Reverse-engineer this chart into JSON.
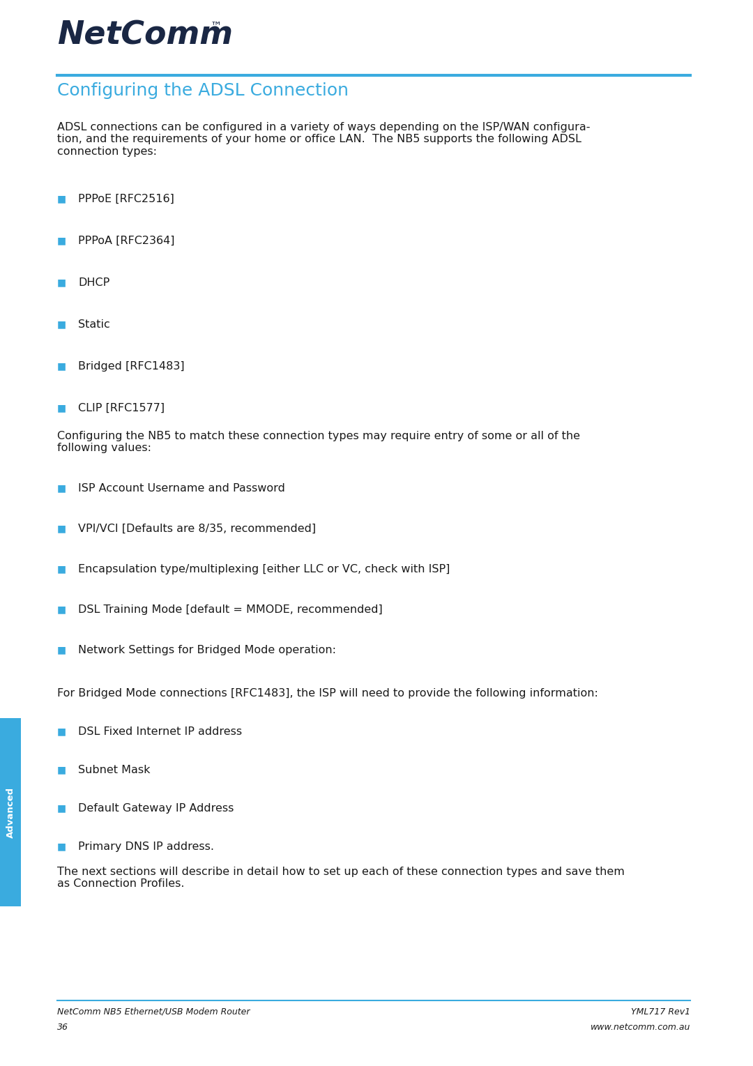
{
  "page_bg": "#ffffff",
  "logo_color": "#1a2744",
  "header_line_color": "#3aabdf",
  "section_title": "Configuring the ADSL Connection",
  "section_title_color": "#3aabdf",
  "body_color": "#1a1a1a",
  "bullet_color": "#3aabdf",
  "footer_line_color": "#3aabdf",
  "footer_left1": "NetComm NB5 Ethernet/USB Modem Router",
  "footer_left2": "36",
  "footer_right1": "YML717 Rev1",
  "footer_right2": "www.netcomm.com.au",
  "sidebar_color": "#3aabdf",
  "sidebar_text": "Advanced",
  "intro_text": "ADSL connections can be configured in a variety of ways depending on the ISP/WAN configura-\ntion, and the requirements of your home or office LAN.  The NB5 supports the following ADSL\nconnection types:",
  "bullets1": [
    "PPPoE [RFC2516]",
    "PPPoA [RFC2364]",
    "DHCP",
    "Static",
    "Bridged [RFC1483]",
    "CLIP [RFC1577]"
  ],
  "mid_text": "Configuring the NB5 to match these connection types may require entry of some or all of the\nfollowing values:",
  "bullets2": [
    "ISP Account Username and Password",
    "VPI/VCI [Defaults are 8/35, recommended]",
    "Encapsulation type/multiplexing [either LLC or VC, check with ISP]",
    "DSL Training Mode [default = MMODE, recommended]",
    "Network Settings for Bridged Mode operation:"
  ],
  "bridged_text": "For Bridged Mode connections [RFC1483], the ISP will need to provide the following information:",
  "bullets3": [
    "DSL Fixed Internet IP address",
    "Subnet Mask",
    "Default Gateway IP Address",
    "Primary DNS IP address."
  ],
  "end_text": "The next sections will describe in detail how to set up each of these connection types and save them\nas Connection Profiles.",
  "fig_w": 10.8,
  "fig_h": 15.29,
  "dpi": 100
}
